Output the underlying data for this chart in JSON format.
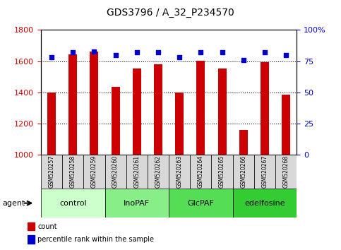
{
  "title": "GDS3796 / A_32_P234570",
  "samples": [
    "GSM520257",
    "GSM520258",
    "GSM520259",
    "GSM520260",
    "GSM520261",
    "GSM520262",
    "GSM520263",
    "GSM520264",
    "GSM520265",
    "GSM520266",
    "GSM520267",
    "GSM520268"
  ],
  "counts": [
    1400,
    1645,
    1660,
    1435,
    1555,
    1580,
    1400,
    1605,
    1555,
    1160,
    1595,
    1385
  ],
  "percentiles": [
    78,
    82,
    83,
    80,
    82,
    82,
    78,
    82,
    82,
    76,
    82,
    80
  ],
  "ylim_left": [
    1000,
    1800
  ],
  "ylim_right": [
    0,
    100
  ],
  "yticks_left": [
    1000,
    1200,
    1400,
    1600,
    1800
  ],
  "yticks_right": [
    0,
    25,
    50,
    75,
    100
  ],
  "bar_color": "#cc0000",
  "dot_color": "#0000cc",
  "grid_color": "#000000",
  "agent_groups": [
    {
      "label": "control",
      "start": 0,
      "end": 3,
      "color": "#ccffcc"
    },
    {
      "label": "InoPAF",
      "start": 3,
      "end": 6,
      "color": "#88ee88"
    },
    {
      "label": "GlcPAF",
      "start": 6,
      "end": 9,
      "color": "#55dd55"
    },
    {
      "label": "edelfosine",
      "start": 9,
      "end": 12,
      "color": "#33cc33"
    }
  ],
  "legend_items": [
    {
      "label": "count",
      "color": "#cc0000",
      "marker": "s"
    },
    {
      "label": "percentile rank within the sample",
      "color": "#0000cc",
      "marker": "s"
    }
  ],
  "xlabel_agent": "agent",
  "bar_width": 0.4,
  "tick_label_color_left": "#cc0000",
  "tick_label_color_right": "#0000cc",
  "background_color": "#ffffff",
  "plot_bg_color": "#ffffff",
  "figsize": [
    4.83,
    3.54
  ],
  "dpi": 100
}
